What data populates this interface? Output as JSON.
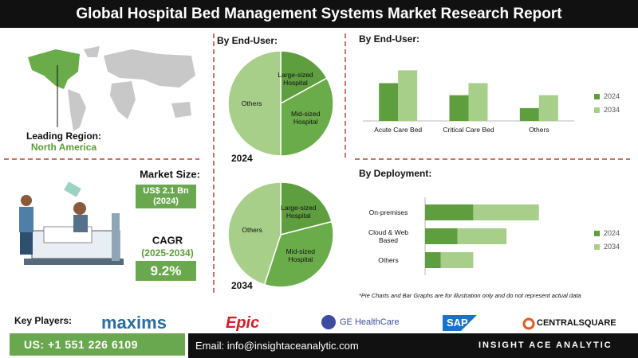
{
  "header": {
    "title": "Global Hospital Bed Management Systems Market Research Report"
  },
  "region": {
    "label": "Leading Region:",
    "value": "North America"
  },
  "market_size": {
    "label": "Market Size:",
    "value": "US$ 2.1 Bn",
    "year": "(2024)"
  },
  "cagr": {
    "label": "CAGR",
    "period": "(2025-2034)",
    "value": "9.2%"
  },
  "chart_data": [
    {
      "type": "pie",
      "title": "By End-User:",
      "label": "2024",
      "categories": [
        "Large-sized Hospital",
        "Mid-sized Hospital",
        "Others"
      ],
      "values": [
        17,
        33,
        50
      ],
      "colors": [
        "#5e9e3f",
        "#6aab4a",
        "#a7cf89"
      ]
    },
    {
      "type": "pie",
      "label": "2034",
      "categories": [
        "Large-sized Hospital",
        "Mid-sized Hospital",
        "Others"
      ],
      "values": [
        21,
        34,
        45
      ],
      "colors": [
        "#5e9e3f",
        "#6aab4a",
        "#a7cf89"
      ]
    },
    {
      "type": "bar",
      "title": "By End-User:",
      "orientation": "vertical",
      "stacked": false,
      "categories": [
        "Acute Care Bed",
        "Critical Care Bed",
        "Others"
      ],
      "series": [
        {
          "name": "2024",
          "color": "#5e9e3f",
          "values": [
            47,
            32,
            16
          ]
        },
        {
          "name": "2034",
          "color": "#a7cf89",
          "values": [
            63,
            47,
            32
          ]
        }
      ]
    },
    {
      "type": "bar",
      "title": "By Deployment:",
      "orientation": "horizontal",
      "stacked": true,
      "categories": [
        "On-premises",
        "Cloud & Web Based",
        "Others"
      ],
      "series": [
        {
          "name": "2024",
          "color": "#5e9e3f",
          "values": [
            58,
            39,
            19
          ]
        },
        {
          "name": "2034",
          "color": "#a7cf89",
          "values": [
            79,
            59,
            39
          ]
        }
      ]
    }
  ],
  "note": "*Pie Charts and Bar Graphs are for illustration only and do not represent actual data",
  "key_players": {
    "label": "Key Players:",
    "names": [
      "maxims",
      "Epic",
      "GE HealthCare",
      "SAP",
      "CENTRALSQUARE"
    ]
  },
  "footer": {
    "phone": "US: +1 551 226 6109",
    "email": "Email: info@insightaceanalytic.com",
    "brand": "INSIGHT ACE ANALYTIC"
  }
}
